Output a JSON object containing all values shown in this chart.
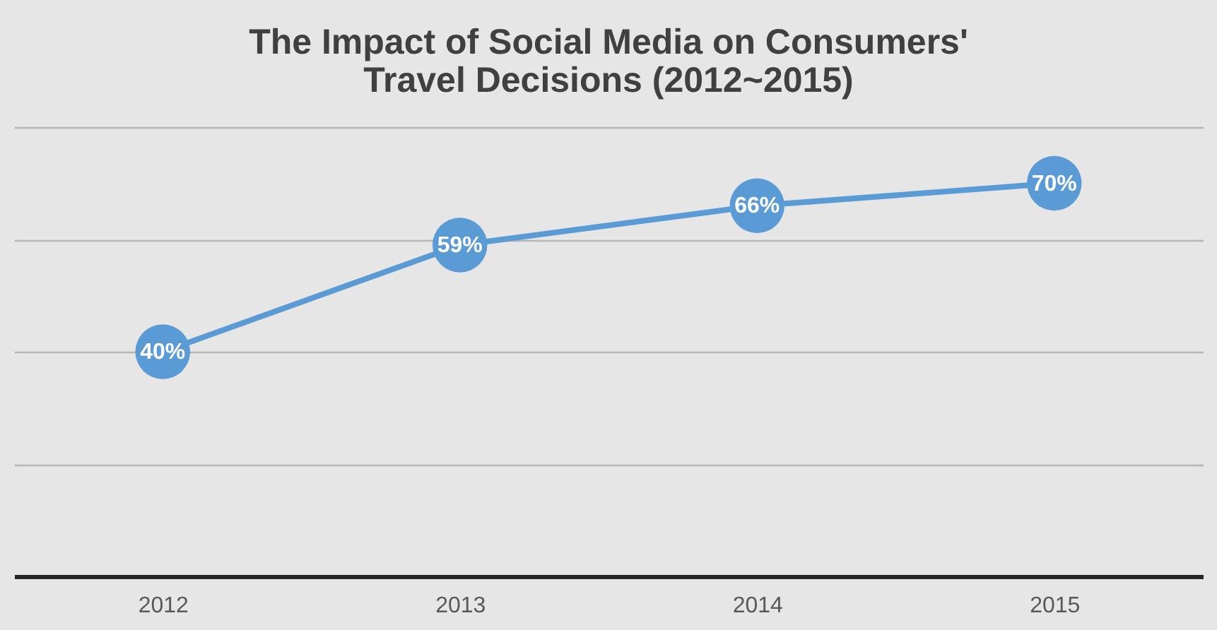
{
  "chart_data": {
    "type": "line",
    "title": "The Impact of Social Media on Consumers' Travel Decisions (2012~2015)",
    "categories": [
      "2012",
      "2013",
      "2014",
      "2015"
    ],
    "series": [
      {
        "color": "#5b9bd5",
        "values": [
          40,
          59,
          66,
          70
        ],
        "value_labels": [
          "40%",
          "59%",
          "66%",
          "70%"
        ]
      }
    ],
    "ylim": [
      0,
      80
    ],
    "yticks": [
      {
        "value": 0,
        "label": null
      },
      {
        "value": 20,
        "label": null
      },
      {
        "value": 40,
        "label": null
      },
      {
        "value": 60,
        "label": null
      },
      {
        "value": 80,
        "label": null
      }
    ],
    "grid": "y",
    "tick_labels": "x",
    "marker": "circle",
    "line_style": "solid"
  }
}
